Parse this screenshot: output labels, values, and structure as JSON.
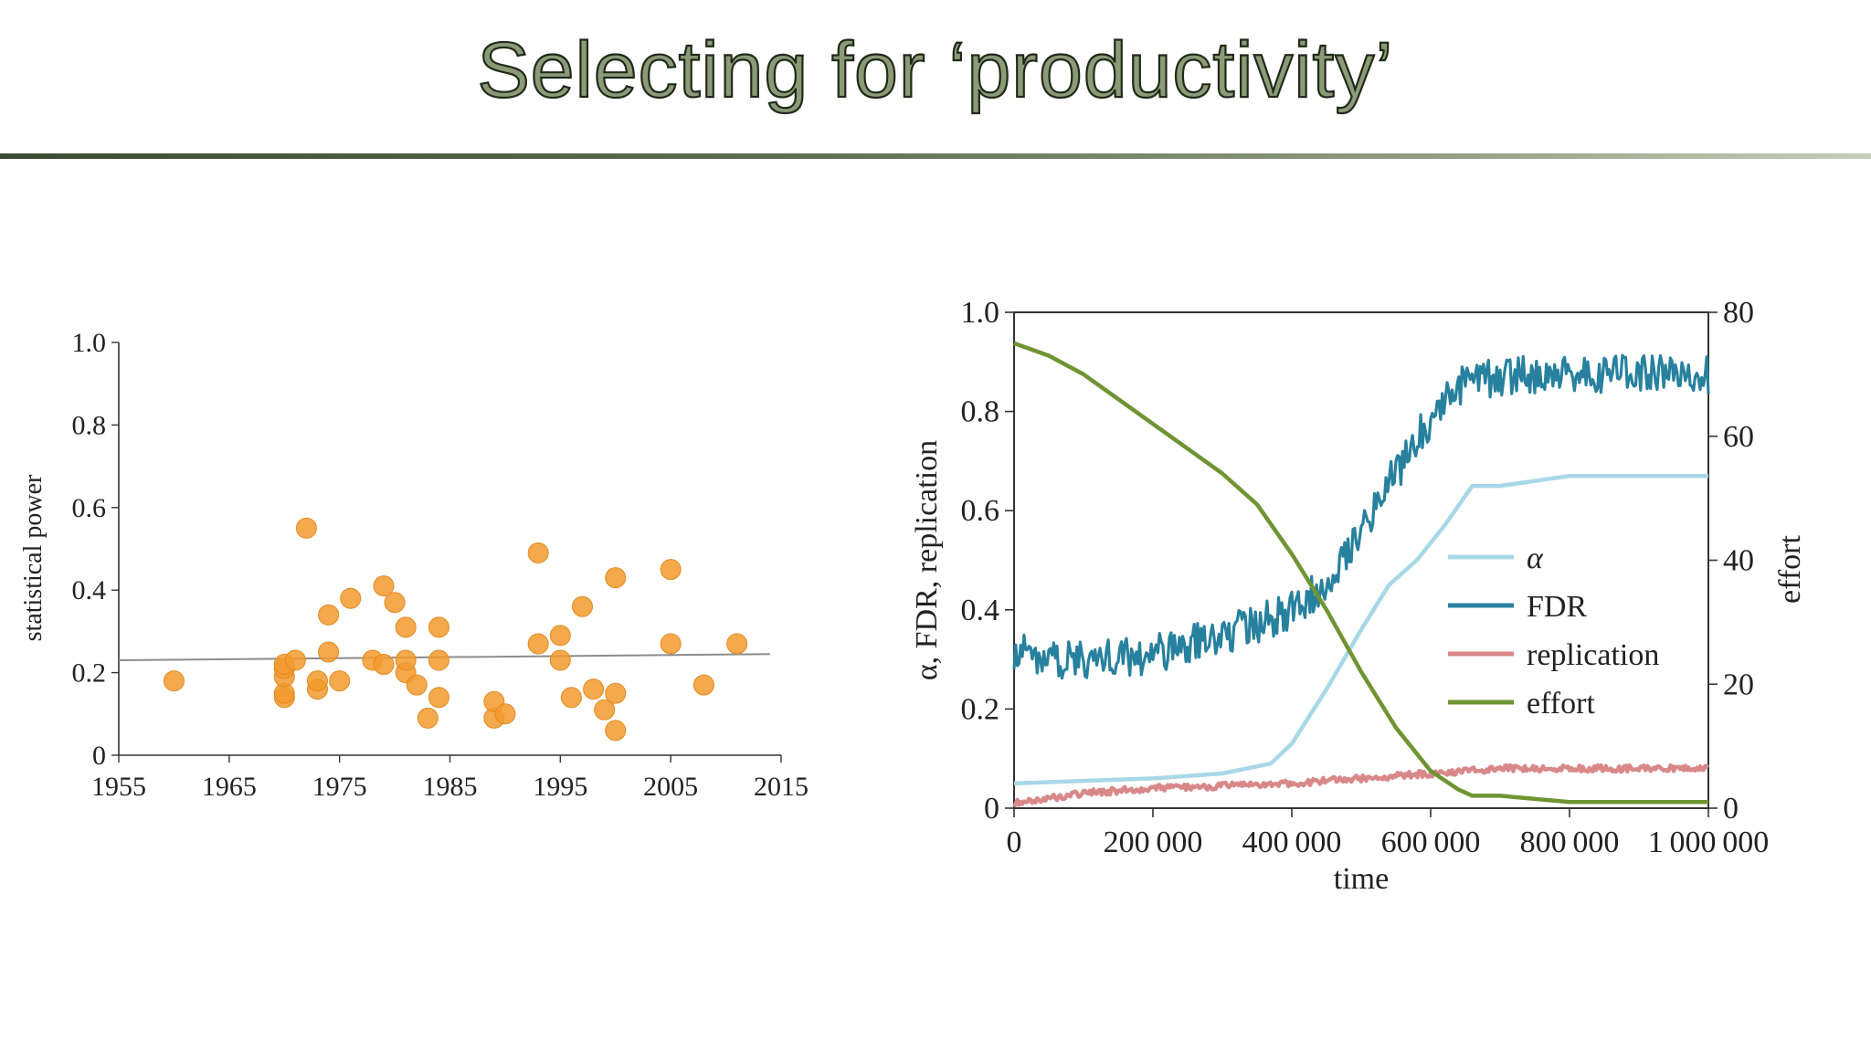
{
  "slide": {
    "title": "Selecting for ‘productivity’"
  },
  "chart_data": [
    {
      "type": "scatter",
      "title": "",
      "xlabel": "",
      "ylabel": "statistical power",
      "xlim": [
        1955,
        2015
      ],
      "ylim": [
        0,
        1.0
      ],
      "xticks": [
        1955,
        1965,
        1975,
        1985,
        1995,
        2005,
        2015
      ],
      "yticks": [
        0,
        0.2,
        0.4,
        0.6,
        0.8,
        1.0
      ],
      "ytick_labels": [
        "0",
        "0.2",
        "0.4",
        "0.6",
        "0.8",
        "1.0"
      ],
      "point_color": "#f39a2e",
      "trend_color": "#8c8c8c",
      "points": [
        [
          1960,
          0.18
        ],
        [
          1970,
          0.14
        ],
        [
          1970,
          0.15
        ],
        [
          1970,
          0.19
        ],
        [
          1970,
          0.21
        ],
        [
          1970,
          0.22
        ],
        [
          1971,
          0.23
        ],
        [
          1972,
          0.55
        ],
        [
          1973,
          0.16
        ],
        [
          1973,
          0.18
        ],
        [
          1974,
          0.25
        ],
        [
          1974,
          0.34
        ],
        [
          1975,
          0.18
        ],
        [
          1976,
          0.38
        ],
        [
          1978,
          0.23
        ],
        [
          1979,
          0.22
        ],
        [
          1979,
          0.41
        ],
        [
          1980,
          0.37
        ],
        [
          1981,
          0.2
        ],
        [
          1981,
          0.23
        ],
        [
          1981,
          0.31
        ],
        [
          1982,
          0.17
        ],
        [
          1983,
          0.09
        ],
        [
          1984,
          0.14
        ],
        [
          1984,
          0.23
        ],
        [
          1984,
          0.31
        ],
        [
          1989,
          0.09
        ],
        [
          1989,
          0.13
        ],
        [
          1990,
          0.1
        ],
        [
          1993,
          0.27
        ],
        [
          1993,
          0.49
        ],
        [
          1995,
          0.23
        ],
        [
          1995,
          0.29
        ],
        [
          1996,
          0.14
        ],
        [
          1997,
          0.36
        ],
        [
          1998,
          0.16
        ],
        [
          1999,
          0.11
        ],
        [
          2000,
          0.06
        ],
        [
          2000,
          0.15
        ],
        [
          2000,
          0.43
        ],
        [
          2005,
          0.27
        ],
        [
          2005,
          0.45
        ],
        [
          2008,
          0.17
        ],
        [
          2011,
          0.27
        ]
      ],
      "trend_line": {
        "x": [
          1955,
          2014
        ],
        "y": [
          0.23,
          0.245
        ]
      }
    },
    {
      "type": "line",
      "title": "",
      "xlabel": "time",
      "ylabel": "α, FDR, replication",
      "ylabel_right": "effort",
      "xlim": [
        0,
        1000000
      ],
      "ylim": [
        0,
        1.0
      ],
      "ylim_right": [
        0,
        80
      ],
      "xticks": [
        0,
        200000,
        400000,
        600000,
        800000,
        1000000
      ],
      "xtick_labels": [
        "0",
        "200 000",
        "400 000",
        "600 000",
        "800 000",
        "1 000 000"
      ],
      "yticks": [
        0,
        0.2,
        0.4,
        0.6,
        0.8,
        1.0
      ],
      "ytick_labels": [
        "0",
        "0.2",
        "0.4",
        "0.6",
        "0.8",
        "1.0"
      ],
      "yticks_right": [
        0,
        20,
        40,
        60,
        80
      ],
      "legend_position": "center-right",
      "series": [
        {
          "name": "α",
          "axis": "left",
          "color": "#a8d8e8",
          "noise": 0,
          "x": [
            0,
            100000,
            200000,
            300000,
            370000,
            400000,
            450000,
            500000,
            540000,
            580000,
            620000,
            660000,
            700000,
            800000,
            1000000
          ],
          "y": [
            0.05,
            0.055,
            0.06,
            0.07,
            0.09,
            0.13,
            0.24,
            0.36,
            0.45,
            0.5,
            0.57,
            0.65,
            0.65,
            0.67,
            0.67
          ]
        },
        {
          "name": "FDR",
          "axis": "left",
          "color": "#27819e",
          "noise": 0.018,
          "x": [
            0,
            50000,
            100000,
            200000,
            300000,
            350000,
            400000,
            430000,
            470000,
            520000,
            570000,
            610000,
            650000,
            700000,
            800000,
            900000,
            1000000
          ],
          "y": [
            0.32,
            0.3,
            0.3,
            0.31,
            0.35,
            0.37,
            0.4,
            0.43,
            0.5,
            0.61,
            0.72,
            0.81,
            0.86,
            0.87,
            0.875,
            0.88,
            0.875
          ]
        },
        {
          "name": "replication",
          "axis": "left",
          "color": "#d9888a",
          "noise": 0.003,
          "x": [
            0,
            100000,
            200000,
            300000,
            400000,
            500000,
            600000,
            700000,
            800000,
            1000000
          ],
          "y": [
            0.01,
            0.03,
            0.04,
            0.045,
            0.05,
            0.06,
            0.07,
            0.08,
            0.08,
            0.08
          ]
        },
        {
          "name": "effort",
          "axis": "right",
          "color": "#6f9432",
          "noise": 0,
          "x": [
            0,
            50000,
            100000,
            150000,
            200000,
            250000,
            300000,
            350000,
            400000,
            450000,
            500000,
            550000,
            600000,
            640000,
            660000,
            700000,
            800000,
            1000000
          ],
          "y": [
            75,
            73,
            70,
            66,
            62,
            58,
            54,
            49,
            41,
            32,
            22,
            13,
            6,
            3,
            2,
            2,
            1,
            1
          ]
        }
      ]
    }
  ]
}
